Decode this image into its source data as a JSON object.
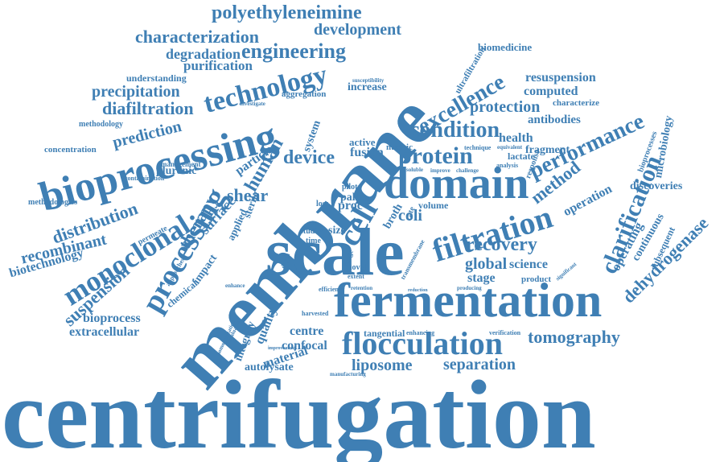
{
  "color": "#3f7fb4",
  "words": [
    "centrifugation",
    "membrane",
    "scale",
    "fermentation",
    "bioprocessing",
    "domain",
    "flocculation",
    "filtration",
    "processing",
    "monoclonal",
    "polyethyleneimine",
    "characterization",
    "development",
    "engineering",
    "degradation",
    "purification",
    "technology",
    "precipitation",
    "diafiltration",
    "prediction",
    "biomedicine",
    "excellence",
    "resuspension",
    "computed",
    "protection",
    "condition",
    "protein",
    "performance",
    "antibodies",
    "characterize",
    "health",
    "lactate",
    "method",
    "clarification",
    "microbiology",
    "operation",
    "discoveries",
    "recovery",
    "dehydrogenase",
    "continuous",
    "bioprocesses",
    "subsequent",
    "global",
    "science",
    "stage",
    "operating",
    "tomography",
    "separation",
    "liposome",
    "confocal",
    "centre",
    "material",
    "quality",
    "integrity",
    "autolysate",
    "bioprocess",
    "extracellular",
    "suspension",
    "biotechnology",
    "recombinant",
    "distribution",
    "methodologies",
    "concentration",
    "methodology",
    "understanding",
    "ultrafiltration",
    "shear",
    "human",
    "particle",
    "therapy",
    "surface",
    "device",
    "cell",
    "fusion",
    "active",
    "nucleic",
    "coli",
    "proc",
    "volume",
    "pall",
    "broth",
    "size",
    "fragment",
    "impact",
    "chemical",
    "applied",
    "sterile",
    "studies",
    "management",
    "pluronic",
    "contamination",
    "permeate",
    "increase",
    "aggregation",
    "investigate",
    "susceptibility",
    "system",
    "tangential",
    "enhancing",
    "verification",
    "manufacturing",
    "evaluation",
    "homogenization",
    "improvement",
    "harvested",
    "efficiency",
    "retention",
    "extent",
    "novel",
    "product",
    "analysis",
    "response",
    "technique",
    "equivalent",
    "challenge",
    "improve",
    "soluble",
    "rate",
    "loss",
    "time",
    "pilot",
    "dead",
    "range",
    "depth",
    "producing",
    "significant",
    "transmembrane",
    "approaches",
    "enhance",
    "reduction"
  ]
}
